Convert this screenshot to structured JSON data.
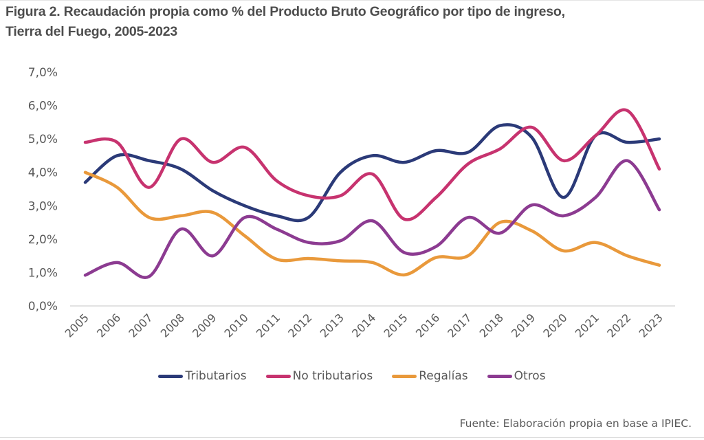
{
  "title_lines": [
    "Figura 2. Recaudación propia como % del Producto Bruto Geográfico por tipo de ingreso,",
    "Tierra del Fuego, 2005-2023"
  ],
  "source": "Fuente: Elaboración propia en base a IPIEC.",
  "chart_data": {
    "type": "line",
    "title": "Figura 2. Recaudación propia como % del Producto Bruto Geográfico por tipo de ingreso, Tierra del Fuego, 2005-2023",
    "xlabel": "",
    "ylabel": "",
    "ylim": [
      0,
      7
    ],
    "grid": false,
    "legend_position": "bottom",
    "smooth": true,
    "y_tick_labels": [
      "0,0%",
      "1,0%",
      "2,0%",
      "3,0%",
      "4,0%",
      "5,0%",
      "6,0%",
      "7,0%"
    ],
    "y_tick_values": [
      0,
      1,
      2,
      3,
      4,
      5,
      6,
      7
    ],
    "categories": [
      "2005",
      "2006",
      "2007",
      "2008",
      "2009",
      "2010",
      "2011",
      "2012",
      "2013",
      "2014",
      "2015",
      "2016",
      "2017",
      "2018",
      "2019",
      "2020",
      "2021",
      "2022",
      "2023"
    ],
    "series": [
      {
        "name": "Tributarios",
        "color": "#2b3a78",
        "values": [
          3.7,
          4.5,
          4.35,
          4.1,
          3.45,
          3.0,
          2.7,
          2.65,
          4.0,
          4.5,
          4.3,
          4.65,
          4.6,
          5.4,
          5.05,
          3.25,
          5.1,
          4.9,
          5.0
        ]
      },
      {
        "name": "No tributarios",
        "color": "#c7336f",
        "values": [
          4.9,
          4.9,
          3.55,
          5.0,
          4.3,
          4.75,
          3.75,
          3.3,
          3.3,
          3.95,
          2.6,
          3.25,
          4.25,
          4.7,
          5.35,
          4.35,
          5.1,
          5.85,
          4.1
        ]
      },
      {
        "name": "Regalías",
        "color": "#e9993b",
        "values": [
          4.0,
          3.55,
          2.65,
          2.7,
          2.8,
          2.1,
          1.4,
          1.42,
          1.35,
          1.3,
          0.93,
          1.45,
          1.5,
          2.5,
          2.25,
          1.65,
          1.9,
          1.5,
          1.22
        ]
      },
      {
        "name": "Otros",
        "color": "#8c3b91",
        "values": [
          0.92,
          1.3,
          0.88,
          2.3,
          1.5,
          2.65,
          2.3,
          1.9,
          1.95,
          2.55,
          1.6,
          1.78,
          2.65,
          2.18,
          3.02,
          2.7,
          3.25,
          4.35,
          2.88
        ]
      }
    ],
    "axis_color": "#d9d9d9"
  }
}
